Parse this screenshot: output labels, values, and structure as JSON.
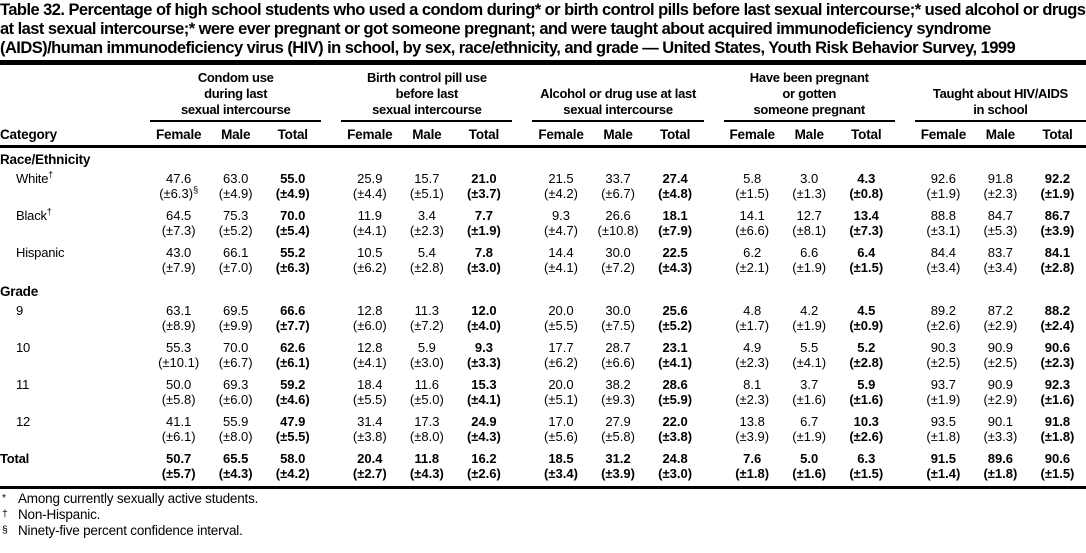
{
  "title": "Table 32. Percentage of high school students who used a condom during* or birth control pills before last sexual intercourse;* used alcohol or drugs at last sexual intercourse;* were ever pregnant or got someone pregnant; and were taught about acquired immunodeficiency syndrome (AIDS)/human immunodeficiency virus (HIV) in school, by sex, race/ethnicity, and grade — United States, Youth Risk Behavior Survey, 1999",
  "table": {
    "category_header": "Category",
    "sub_columns": [
      "Female",
      "Male",
      "Total"
    ],
    "groups": [
      {
        "lines": [
          "Condom use",
          "during last",
          "sexual intercourse"
        ]
      },
      {
        "lines": [
          "Birth control pill use",
          "before last",
          "sexual intercourse"
        ]
      },
      {
        "lines": [
          "Alcohol or drug use at last",
          "sexual intercourse"
        ]
      },
      {
        "lines": [
          "Have been pregnant",
          "or gotten",
          "someone pregnant"
        ]
      },
      {
        "lines": [
          "Taught about HIV/AIDS",
          "in school"
        ]
      }
    ],
    "rows": [
      {
        "type": "section",
        "label": "Race/Ethnicity"
      },
      {
        "type": "data",
        "label": "White",
        "sup": "†",
        "bold": false,
        "values": [
          "47.6",
          "63.0",
          "55.0",
          "25.9",
          "15.7",
          "21.0",
          "21.5",
          "33.7",
          "27.4",
          "5.8",
          "3.0",
          "4.3",
          "92.6",
          "91.8",
          "92.2"
        ],
        "ci": [
          "(±6.3)§",
          "(±4.9)",
          "(±4.9)",
          "(±4.4)",
          "(±5.1)",
          "(±3.7)",
          "(±4.2)",
          "(±6.7)",
          "(±4.8)",
          "(±1.5)",
          "(±1.3)",
          "(±0.8)",
          "(±1.9)",
          "(±2.3)",
          "(±1.9)"
        ]
      },
      {
        "type": "data",
        "label": "Black",
        "sup": "†",
        "bold": false,
        "values": [
          "64.5",
          "75.3",
          "70.0",
          "11.9",
          "3.4",
          "7.7",
          "9.3",
          "26.6",
          "18.1",
          "14.1",
          "12.7",
          "13.4",
          "88.8",
          "84.7",
          "86.7"
        ],
        "ci": [
          "(±7.3)",
          "(±5.2)",
          "(±5.4)",
          "(±4.1)",
          "(±2.3)",
          "(±1.9)",
          "(±4.7)",
          "(±10.8)",
          "(±7.9)",
          "(±6.6)",
          "(±8.1)",
          "(±7.3)",
          "(±3.1)",
          "(±5.3)",
          "(±3.9)"
        ]
      },
      {
        "type": "data",
        "label": "Hispanic",
        "bold": false,
        "values": [
          "43.0",
          "66.1",
          "55.2",
          "10.5",
          "5.4",
          "7.8",
          "14.4",
          "30.0",
          "22.5",
          "6.2",
          "6.6",
          "6.4",
          "84.4",
          "83.7",
          "84.1"
        ],
        "ci": [
          "(±7.9)",
          "(±7.0)",
          "(±6.3)",
          "(±6.2)",
          "(±2.8)",
          "(±3.0)",
          "(±4.1)",
          "(±7.2)",
          "(±4.3)",
          "(±2.1)",
          "(±1.9)",
          "(±1.5)",
          "(±3.4)",
          "(±3.4)",
          "(±2.8)"
        ]
      },
      {
        "type": "section",
        "label": "Grade"
      },
      {
        "type": "data",
        "label": "9",
        "bold": false,
        "values": [
          "63.1",
          "69.5",
          "66.6",
          "12.8",
          "11.3",
          "12.0",
          "20.0",
          "30.0",
          "25.6",
          "4.8",
          "4.2",
          "4.5",
          "89.2",
          "87.2",
          "88.2"
        ],
        "ci": [
          "(±8.9)",
          "(±9.9)",
          "(±7.7)",
          "(±6.0)",
          "(±7.2)",
          "(±4.0)",
          "(±5.5)",
          "(±7.5)",
          "(±5.2)",
          "(±1.7)",
          "(±1.9)",
          "(±0.9)",
          "(±2.6)",
          "(±2.9)",
          "(±2.4)"
        ]
      },
      {
        "type": "data",
        "label": "10",
        "bold": false,
        "values": [
          "55.3",
          "70.0",
          "62.6",
          "12.8",
          "5.9",
          "9.3",
          "17.7",
          "28.7",
          "23.1",
          "4.9",
          "5.5",
          "5.2",
          "90.3",
          "90.9",
          "90.6"
        ],
        "ci": [
          "(±10.1)",
          "(±6.7)",
          "(±6.1)",
          "(±4.1)",
          "(±3.0)",
          "(±3.3)",
          "(±6.2)",
          "(±6.6)",
          "(±4.1)",
          "(±2.3)",
          "(±4.1)",
          "(±2.8)",
          "(±2.5)",
          "(±2.5)",
          "(±2.3)"
        ]
      },
      {
        "type": "data",
        "label": "11",
        "bold": false,
        "values": [
          "50.0",
          "69.3",
          "59.2",
          "18.4",
          "11.6",
          "15.3",
          "20.0",
          "38.2",
          "28.6",
          "8.1",
          "3.7",
          "5.9",
          "93.7",
          "90.9",
          "92.3"
        ],
        "ci": [
          "(±5.8)",
          "(±6.0)",
          "(±4.6)",
          "(±5.5)",
          "(±5.0)",
          "(±4.1)",
          "(±5.1)",
          "(±9.3)",
          "(±5.9)",
          "(±2.3)",
          "(±1.6)",
          "(±1.6)",
          "(±1.9)",
          "(±2.9)",
          "(±1.6)"
        ]
      },
      {
        "type": "data",
        "label": "12",
        "bold": false,
        "values": [
          "41.1",
          "55.9",
          "47.9",
          "31.4",
          "17.3",
          "24.9",
          "17.0",
          "27.9",
          "22.0",
          "13.8",
          "6.7",
          "10.3",
          "93.5",
          "90.1",
          "91.8"
        ],
        "ci": [
          "(±6.1)",
          "(±8.0)",
          "(±5.5)",
          "(±3.8)",
          "(±8.0)",
          "(±4.3)",
          "(±5.6)",
          "(±5.8)",
          "(±3.8)",
          "(±3.9)",
          "(±1.9)",
          "(±2.6)",
          "(±1.8)",
          "(±3.3)",
          "(±1.8)"
        ]
      },
      {
        "type": "data",
        "label": "Total",
        "bold": true,
        "top_level": true,
        "values": [
          "50.7",
          "65.5",
          "58.0",
          "20.4",
          "11.8",
          "16.2",
          "18.5",
          "31.2",
          "24.8",
          "7.6",
          "5.0",
          "6.3",
          "91.5",
          "89.6",
          "90.6"
        ],
        "ci": [
          "(±5.7)",
          "(±4.3)",
          "(±4.2)",
          "(±2.7)",
          "(±4.3)",
          "(±2.6)",
          "(±3.4)",
          "(±3.9)",
          "(±3.0)",
          "(±1.8)",
          "(±1.6)",
          "(±1.5)",
          "(±1.4)",
          "(±1.8)",
          "(±1.5)"
        ]
      }
    ]
  },
  "footnotes": [
    {
      "symbol": "*",
      "text": "Among currently sexually active students."
    },
    {
      "symbol": "†",
      "text": "Non-Hispanic."
    },
    {
      "symbol": "§",
      "text": "Ninety-five percent confidence interval."
    }
  ]
}
